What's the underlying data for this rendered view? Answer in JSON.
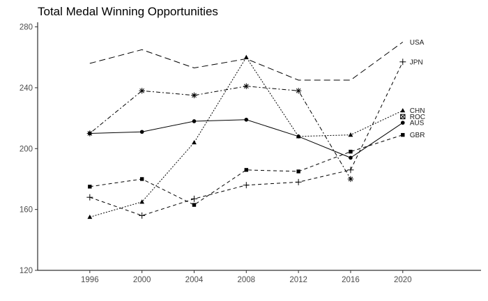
{
  "chart_data": {
    "type": "line",
    "title": "Total Medal Winning Opportunities",
    "xlabel": "",
    "ylabel": "",
    "x": [
      1996,
      2000,
      2004,
      2008,
      2012,
      2016,
      2020
    ],
    "xlim": [
      1992,
      2026
    ],
    "ylim": [
      120,
      283
    ],
    "yticks": [
      120,
      160,
      200,
      240,
      280
    ],
    "grid": false,
    "legend": "none (series labelled at the end of each line)",
    "series": [
      {
        "name": "USA",
        "linestyle": "longdash",
        "marker": "none",
        "values": [
          256,
          265,
          253,
          259,
          245,
          245,
          270
        ]
      },
      {
        "name": "JPN",
        "linestyle": "dashed",
        "marker": "plus",
        "values": [
          168,
          156,
          167,
          176,
          178,
          186,
          257
        ]
      },
      {
        "name": "CHN",
        "linestyle": "dotted",
        "marker": "triangle",
        "values": [
          155,
          165,
          204,
          260,
          208,
          209,
          225
        ]
      },
      {
        "name": "ROC",
        "linestyle": "dotdash",
        "marker": "asterisk",
        "values": [
          210,
          238,
          235,
          241,
          238,
          180,
          null
        ]
      },
      {
        "name": "AUS",
        "linestyle": "solid",
        "marker": "circle",
        "values": [
          210,
          211,
          218,
          219,
          208,
          194,
          217
        ]
      },
      {
        "name": "GBR",
        "linestyle": "dashed",
        "marker": "square",
        "values": [
          175,
          180,
          163,
          186,
          185,
          198,
          209
        ]
      }
    ],
    "end_labels": [
      {
        "text": "USA",
        "value": 270
      },
      {
        "text": "JPN",
        "value": 257
      },
      {
        "text": "CHN",
        "value": 225
      },
      {
        "text": "ROC",
        "value": 221
      },
      {
        "text": "AUS",
        "value": 217
      },
      {
        "text": "GBR",
        "value": 209
      }
    ],
    "end_markers": [
      {
        "series": "ROC",
        "marker": "square-x",
        "value": 221
      }
    ]
  }
}
